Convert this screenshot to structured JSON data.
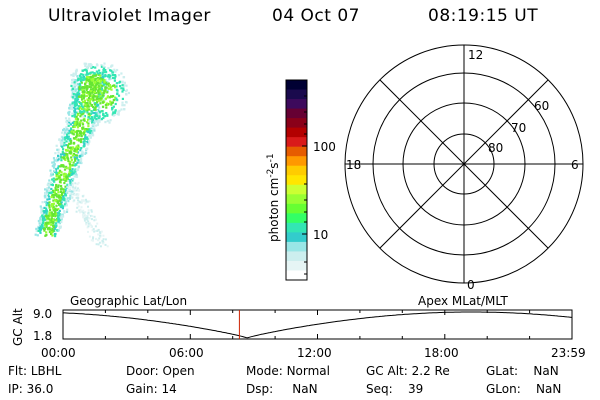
{
  "header": {
    "instrument": "Ultraviolet Imager",
    "date": "04 Oct 07",
    "time": "08:19:15 UT"
  },
  "colorbar": {
    "label": "photon cm-2s-1",
    "label_main": "photon cm",
    "label_exp1": "-2",
    "label_mid": "s",
    "label_exp2": "-1",
    "ticks": [
      "100",
      "10"
    ],
    "colors": [
      "#000033",
      "#1a0a4d",
      "#3d0a5c",
      "#660033",
      "#8a0019",
      "#b30000",
      "#d91a1a",
      "#e65c00",
      "#ff9900",
      "#ffcc00",
      "#ffe600",
      "#ccff33",
      "#99ff33",
      "#66ff33",
      "#33ff66",
      "#33e6b3",
      "#33cccc",
      "#99e6e6",
      "#cceeee",
      "#e6f5f5",
      "#ffffff"
    ]
  },
  "polar_plot": {
    "mlt_labels": {
      "top": "12",
      "bottom": "0",
      "left": "18",
      "right": "6"
    },
    "lat_labels": [
      "60",
      "70",
      "80"
    ]
  },
  "altitude_plot": {
    "ylabel": "GC Alt",
    "yticks": [
      "9.0",
      "1.8"
    ],
    "left_title": "Geographic Lat/Lon",
    "right_title": "Apex MLat/MLT",
    "xticks": [
      "00:00",
      "06:00",
      "12:00",
      "18:00",
      "23:59"
    ],
    "current_time_fraction": 0.3466
  },
  "status": {
    "row1": [
      {
        "label": "Flt:",
        "value": "LBHL"
      },
      {
        "label": "Door:",
        "value": "Open"
      },
      {
        "label": "Mode:",
        "value": "Normal"
      },
      {
        "label": "GC Alt:",
        "value": "2.2 Re"
      },
      {
        "label": "GLat:",
        "value": "NaN"
      }
    ],
    "row2": [
      {
        "label": "IP:",
        "value": "36.0"
      },
      {
        "label": "Gain:",
        "value": "14"
      },
      {
        "label": "Dsp:",
        "value": "NaN"
      },
      {
        "label": "Seq:",
        "value": "39"
      },
      {
        "label": "GLon:",
        "value": "NaN"
      }
    ]
  },
  "accent_colors": {
    "current_time_marker": "#cc2200"
  }
}
